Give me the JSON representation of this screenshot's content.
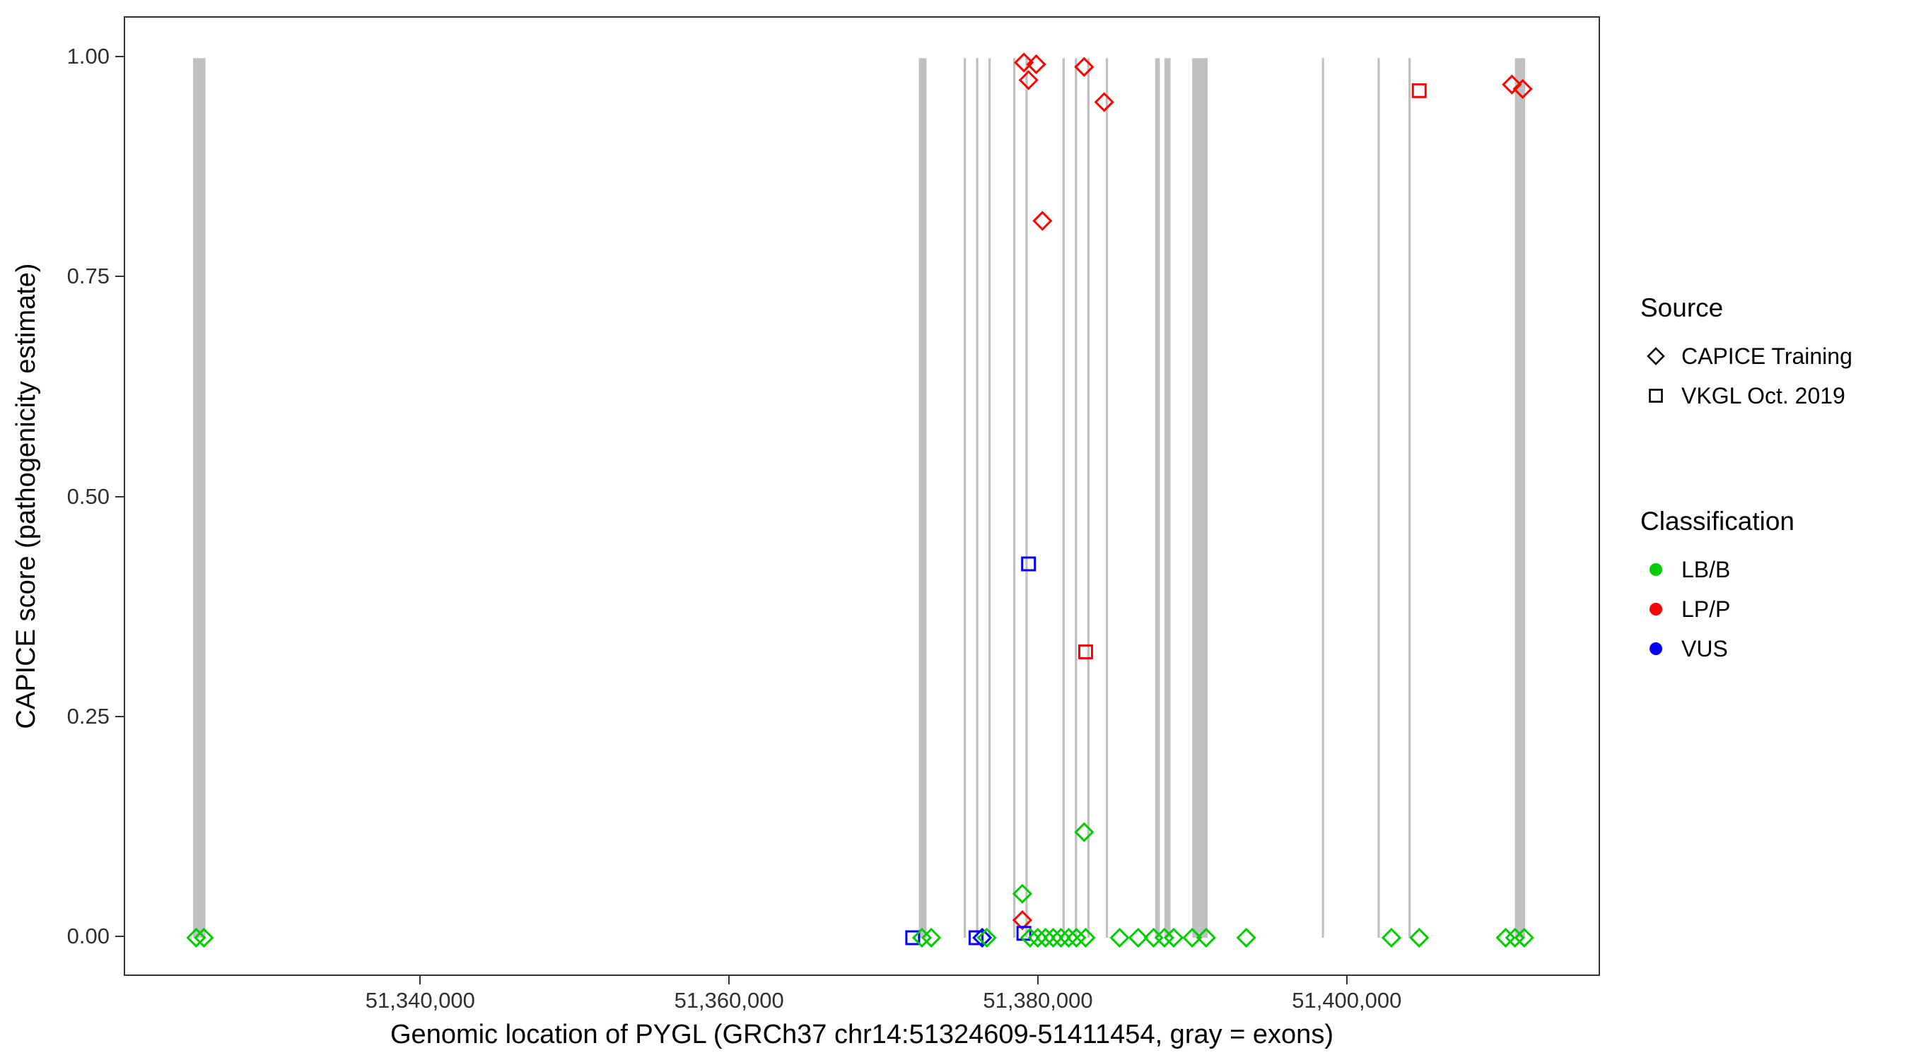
{
  "chart_data": {
    "type": "scatter",
    "title": "",
    "xlabel": "Genomic location of PYGL (GRCh37 chr14:51324609-51411454, gray = exons)",
    "ylabel": "CAPICE score (pathogenicity estimate)",
    "xlim": [
      51320800,
      51416400
    ],
    "ylim": [
      -0.045,
      1.046
    ],
    "grid": false,
    "xticks": [
      {
        "value": 51340000,
        "label": "51,340,000"
      },
      {
        "value": 51360000,
        "label": "51,360,000"
      },
      {
        "value": 51380000,
        "label": "51,380,000"
      },
      {
        "value": 51400000,
        "label": "51,400,000"
      }
    ],
    "yticks": [
      {
        "value": 0.0,
        "label": "0.00"
      },
      {
        "value": 0.25,
        "label": "0.25"
      },
      {
        "value": 0.5,
        "label": "0.50"
      },
      {
        "value": 0.75,
        "label": "0.75"
      },
      {
        "value": 1.0,
        "label": "1.00"
      }
    ],
    "exon_color": "#c0c0c0",
    "colors": {
      "LB/B": "#00cc00",
      "LP/P": "#ff0000",
      "VUS": "#0000ff"
    },
    "marker_by_source": {
      "CAPICE Training": "diamond",
      "VKGL Oct. 2019": "square"
    },
    "exons": [
      {
        "start": 51325200,
        "end": 51326000
      },
      {
        "start": 51372200,
        "end": 51372700
      },
      {
        "start": 51375100,
        "end": 51375250
      },
      {
        "start": 51375900,
        "end": 51376050
      },
      {
        "start": 51376700,
        "end": 51376850
      },
      {
        "start": 51378300,
        "end": 51378450
      },
      {
        "start": 51379100,
        "end": 51379250
      },
      {
        "start": 51381500,
        "end": 51381650
      },
      {
        "start": 51382300,
        "end": 51382450
      },
      {
        "start": 51383100,
        "end": 51383250
      },
      {
        "start": 51384300,
        "end": 51384450
      },
      {
        "start": 51387500,
        "end": 51387800
      },
      {
        "start": 51388100,
        "end": 51388500
      },
      {
        "start": 51389900,
        "end": 51390900
      },
      {
        "start": 51398300,
        "end": 51398400
      },
      {
        "start": 51401900,
        "end": 51402050
      },
      {
        "start": 51403900,
        "end": 51404050
      },
      {
        "start": 51410800,
        "end": 51411454
      }
    ],
    "points": [
      {
        "x": 51379000,
        "y": 0.995,
        "source": "CAPICE Training",
        "classification": "LP/P"
      },
      {
        "x": 51379800,
        "y": 0.993,
        "source": "CAPICE Training",
        "classification": "LP/P"
      },
      {
        "x": 51379300,
        "y": 0.975,
        "source": "CAPICE Training",
        "classification": "LP/P"
      },
      {
        "x": 51382900,
        "y": 0.99,
        "source": "CAPICE Training",
        "classification": "LP/P"
      },
      {
        "x": 51384200,
        "y": 0.95,
        "source": "CAPICE Training",
        "classification": "LP/P"
      },
      {
        "x": 51380200,
        "y": 0.815,
        "source": "CAPICE Training",
        "classification": "LP/P"
      },
      {
        "x": 51378900,
        "y": 0.02,
        "source": "CAPICE Training",
        "classification": "LP/P"
      },
      {
        "x": 51410600,
        "y": 0.97,
        "source": "CAPICE Training",
        "classification": "LP/P"
      },
      {
        "x": 51411300,
        "y": 0.965,
        "source": "CAPICE Training",
        "classification": "LP/P"
      },
      {
        "x": 51383000,
        "y": 0.325,
        "source": "VKGL Oct. 2019",
        "classification": "LP/P"
      },
      {
        "x": 51404600,
        "y": 0.963,
        "source": "VKGL Oct. 2019",
        "classification": "LP/P"
      },
      {
        "x": 51379300,
        "y": 0.425,
        "source": "VKGL Oct. 2019",
        "classification": "VUS"
      },
      {
        "x": 51371800,
        "y": 0.0,
        "source": "VKGL Oct. 2019",
        "classification": "VUS"
      },
      {
        "x": 51375900,
        "y": 0.0,
        "source": "VKGL Oct. 2019",
        "classification": "VUS"
      },
      {
        "x": 51379000,
        "y": 0.005,
        "source": "VKGL Oct. 2019",
        "classification": "VUS"
      },
      {
        "x": 51376300,
        "y": 0.0,
        "source": "CAPICE Training",
        "classification": "VUS"
      },
      {
        "x": 51325400,
        "y": 0.0,
        "source": "CAPICE Training",
        "classification": "LB/B"
      },
      {
        "x": 51325900,
        "y": 0.0,
        "source": "CAPICE Training",
        "classification": "LB/B"
      },
      {
        "x": 51372400,
        "y": 0.0,
        "source": "CAPICE Training",
        "classification": "LB/B"
      },
      {
        "x": 51373000,
        "y": 0.0,
        "source": "CAPICE Training",
        "classification": "LB/B"
      },
      {
        "x": 51376600,
        "y": 0.0,
        "source": "CAPICE Training",
        "classification": "LB/B"
      },
      {
        "x": 51378900,
        "y": 0.05,
        "source": "CAPICE Training",
        "classification": "LB/B"
      },
      {
        "x": 51379400,
        "y": 0.0,
        "source": "CAPICE Training",
        "classification": "LB/B"
      },
      {
        "x": 51379900,
        "y": 0.0,
        "source": "CAPICE Training",
        "classification": "LB/B"
      },
      {
        "x": 51380400,
        "y": 0.0,
        "source": "CAPICE Training",
        "classification": "LB/B"
      },
      {
        "x": 51380900,
        "y": 0.0,
        "source": "CAPICE Training",
        "classification": "LB/B"
      },
      {
        "x": 51381400,
        "y": 0.0,
        "source": "CAPICE Training",
        "classification": "LB/B"
      },
      {
        "x": 51381900,
        "y": 0.0,
        "source": "CAPICE Training",
        "classification": "LB/B"
      },
      {
        "x": 51382400,
        "y": 0.0,
        "source": "CAPICE Training",
        "classification": "LB/B"
      },
      {
        "x": 51382900,
        "y": 0.12,
        "source": "CAPICE Training",
        "classification": "LB/B"
      },
      {
        "x": 51383000,
        "y": 0.0,
        "source": "CAPICE Training",
        "classification": "LB/B"
      },
      {
        "x": 51385200,
        "y": 0.0,
        "source": "CAPICE Training",
        "classification": "LB/B"
      },
      {
        "x": 51386400,
        "y": 0.0,
        "source": "CAPICE Training",
        "classification": "LB/B"
      },
      {
        "x": 51387400,
        "y": 0.0,
        "source": "CAPICE Training",
        "classification": "LB/B"
      },
      {
        "x": 51388100,
        "y": 0.0,
        "source": "CAPICE Training",
        "classification": "LB/B"
      },
      {
        "x": 51388700,
        "y": 0.0,
        "source": "CAPICE Training",
        "classification": "LB/B"
      },
      {
        "x": 51389900,
        "y": 0.0,
        "source": "CAPICE Training",
        "classification": "LB/B"
      },
      {
        "x": 51390800,
        "y": 0.0,
        "source": "CAPICE Training",
        "classification": "LB/B"
      },
      {
        "x": 51393400,
        "y": 0.0,
        "source": "CAPICE Training",
        "classification": "LB/B"
      },
      {
        "x": 51402800,
        "y": 0.0,
        "source": "CAPICE Training",
        "classification": "LB/B"
      },
      {
        "x": 51404600,
        "y": 0.0,
        "source": "CAPICE Training",
        "classification": "LB/B"
      },
      {
        "x": 51410200,
        "y": 0.0,
        "source": "CAPICE Training",
        "classification": "LB/B"
      },
      {
        "x": 51410800,
        "y": 0.0,
        "source": "CAPICE Training",
        "classification": "LB/B"
      },
      {
        "x": 51411400,
        "y": 0.0,
        "source": "CAPICE Training",
        "classification": "LB/B"
      }
    ]
  },
  "legend": {
    "source": {
      "title": "Source",
      "items": [
        {
          "label": "CAPICE Training",
          "marker": "diamond"
        },
        {
          "label": "VKGL Oct. 2019",
          "marker": "square"
        }
      ]
    },
    "classification": {
      "title": "Classification",
      "items": [
        {
          "label": "LB/B",
          "color": "#00cc00"
        },
        {
          "label": "LP/P",
          "color": "#ff0000"
        },
        {
          "label": "VUS",
          "color": "#0000ff"
        }
      ]
    }
  }
}
